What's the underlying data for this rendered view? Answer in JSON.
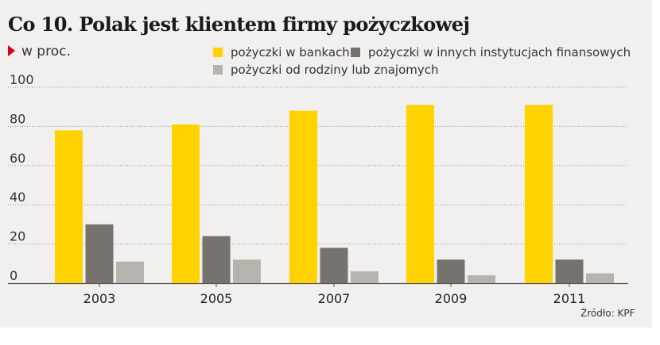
{
  "title": "Co 10. Polak jest klientem firmy pożyczkowej",
  "unit": "w proc.",
  "source": "Źródło: KPF",
  "colors": {
    "marker": "#d7001d",
    "grid": "#9a9a9a",
    "panel": "#f1f0ee"
  },
  "chart_data": {
    "type": "bar",
    "title": "Co 10. Polak jest klientem firmy pożyczkowej",
    "ylabel": "w proc.",
    "categories": [
      "2003",
      "2005",
      "2007",
      "2009",
      "2011"
    ],
    "ylim": [
      0,
      100
    ],
    "yticks": [
      "0",
      "20",
      "40",
      "60",
      "80",
      "100"
    ],
    "legend_placement": "top",
    "grid": "horizontal dotted",
    "series": [
      {
        "name": "pożyczki w bankach",
        "color": "#ffd200",
        "values": [
          78,
          81,
          88,
          91,
          91
        ]
      },
      {
        "name": "pożyczki w innych instytucjach finansowych",
        "color": "#77726d",
        "values": [
          30,
          24,
          18,
          12,
          12
        ]
      },
      {
        "name": "pożyczki od rodziny lub znajomych",
        "color": "#b7b2ac",
        "values": [
          11,
          12,
          6,
          4,
          5
        ]
      }
    ]
  }
}
